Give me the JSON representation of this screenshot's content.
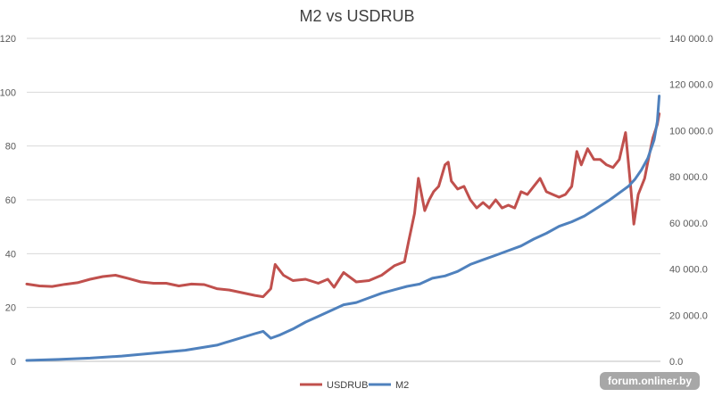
{
  "chart_data": {
    "type": "line",
    "title": "M2 vs USDRUB",
    "xlabel": "",
    "ylabel": "",
    "y_left": {
      "min": 0,
      "max": 120,
      "ticks": [
        0,
        20,
        40,
        60,
        80,
        100,
        120
      ],
      "tick_labels": [
        "0",
        "20",
        "40",
        "60",
        "80",
        "100",
        "120"
      ]
    },
    "y_right": {
      "min": 0,
      "max": 140000,
      "ticks": [
        0,
        20000,
        40000,
        60000,
        80000,
        100000,
        120000,
        140000
      ],
      "tick_labels": [
        "0.0",
        "20 000.0",
        "40 000.0",
        "60 000.0",
        "80 000.0",
        "100 000.0",
        "120 000.0",
        "140 000.0"
      ]
    },
    "x": {
      "min": 0,
      "max": 100
    },
    "grid": "horizontal",
    "legend_position": "bottom",
    "series": [
      {
        "name": "USDRUB",
        "axis": "left",
        "color": "#c0504d",
        "points": [
          [
            0,
            28.7
          ],
          [
            2,
            28
          ],
          [
            4,
            27.8
          ],
          [
            6,
            28.6
          ],
          [
            8,
            29.2
          ],
          [
            10,
            30.5
          ],
          [
            12,
            31.5
          ],
          [
            14,
            32
          ],
          [
            16,
            30.8
          ],
          [
            18,
            29.5
          ],
          [
            20,
            29
          ],
          [
            22,
            29
          ],
          [
            24,
            28
          ],
          [
            26,
            28.7
          ],
          [
            28,
            28.5
          ],
          [
            30,
            27
          ],
          [
            32,
            26.5
          ],
          [
            34,
            25.5
          ],
          [
            36,
            24.5
          ],
          [
            37.3,
            24
          ],
          [
            38.5,
            27
          ],
          [
            39.2,
            36
          ],
          [
            40.5,
            32
          ],
          [
            42,
            30
          ],
          [
            44,
            30.5
          ],
          [
            46,
            29
          ],
          [
            47.5,
            30.5
          ],
          [
            48.5,
            27.5
          ],
          [
            50,
            33
          ],
          [
            52,
            29.5
          ],
          [
            54,
            30
          ],
          [
            56,
            32
          ],
          [
            58,
            35.5
          ],
          [
            59.6,
            37
          ],
          [
            60.3,
            45
          ],
          [
            61.2,
            55
          ],
          [
            61.8,
            68
          ],
          [
            62.8,
            56
          ],
          [
            63.5,
            60
          ],
          [
            64.2,
            63
          ],
          [
            65,
            65
          ],
          [
            66,
            73
          ],
          [
            66.5,
            74
          ],
          [
            67,
            67
          ],
          [
            68,
            64
          ],
          [
            69,
            65
          ],
          [
            70,
            60
          ],
          [
            71,
            57
          ],
          [
            72,
            59
          ],
          [
            73,
            57
          ],
          [
            74,
            60
          ],
          [
            75,
            57
          ],
          [
            76,
            58
          ],
          [
            77,
            57
          ],
          [
            78,
            63
          ],
          [
            79,
            62
          ],
          [
            80,
            65
          ],
          [
            81,
            68
          ],
          [
            82,
            63
          ],
          [
            83,
            62
          ],
          [
            84,
            61
          ],
          [
            85,
            62
          ],
          [
            86,
            65
          ],
          [
            86.8,
            78
          ],
          [
            87.5,
            73
          ],
          [
            88.5,
            79
          ],
          [
            89.5,
            75
          ],
          [
            90.5,
            75
          ],
          [
            91.5,
            73
          ],
          [
            92.5,
            72
          ],
          [
            93.5,
            75
          ],
          [
            94.5,
            85
          ],
          [
            95.3,
            65
          ],
          [
            95.8,
            51
          ],
          [
            96.5,
            62
          ],
          [
            97.5,
            68
          ],
          [
            98,
            74
          ],
          [
            98.8,
            83
          ],
          [
            99.5,
            88
          ],
          [
            99.8,
            92
          ]
        ]
      },
      {
        "name": "M2",
        "axis": "right",
        "color": "#4f81bd",
        "points": [
          [
            0,
            400
          ],
          [
            5,
            800
          ],
          [
            10,
            1400
          ],
          [
            15,
            2300
          ],
          [
            20,
            3500
          ],
          [
            25,
            4800
          ],
          [
            30,
            7000
          ],
          [
            33,
            9500
          ],
          [
            36,
            12000
          ],
          [
            37.3,
            13000
          ],
          [
            38.5,
            10000
          ],
          [
            40,
            11500
          ],
          [
            42,
            14000
          ],
          [
            44,
            17000
          ],
          [
            46,
            19500
          ],
          [
            48,
            22000
          ],
          [
            50,
            24500
          ],
          [
            52,
            25500
          ],
          [
            54,
            27500
          ],
          [
            56,
            29500
          ],
          [
            58,
            31000
          ],
          [
            60,
            32500
          ],
          [
            62,
            33500
          ],
          [
            64,
            36000
          ],
          [
            66,
            37000
          ],
          [
            68,
            39000
          ],
          [
            70,
            42000
          ],
          [
            72,
            44000
          ],
          [
            74,
            46000
          ],
          [
            76,
            48000
          ],
          [
            78,
            50000
          ],
          [
            80,
            53000
          ],
          [
            82,
            55500
          ],
          [
            84,
            58500
          ],
          [
            86,
            60500
          ],
          [
            88,
            63000
          ],
          [
            90,
            66500
          ],
          [
            92,
            70000
          ],
          [
            94,
            74000
          ],
          [
            95,
            76000
          ],
          [
            96,
            79000
          ],
          [
            97,
            83000
          ],
          [
            98,
            88000
          ],
          [
            99,
            96000
          ],
          [
            99.5,
            104000
          ],
          [
            99.8,
            115000
          ]
        ]
      }
    ],
    "watermark": "forum.onliner.by"
  }
}
